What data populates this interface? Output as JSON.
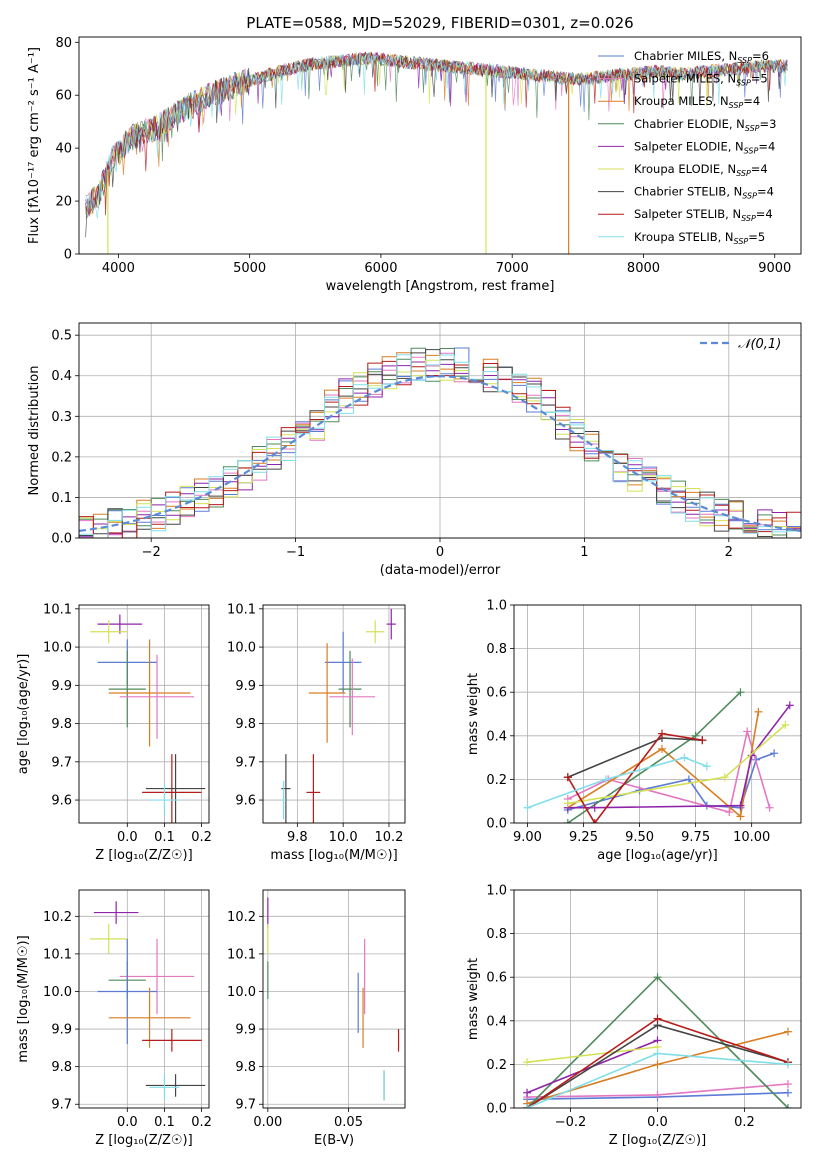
{
  "colors": {
    "Chabrier MILES": "#5b7bd5",
    "Salpeter MILES": "#e377c2",
    "Kroupa MILES": "#d97d22",
    "Chabrier ELODIE": "#4f8a5b",
    "Salpeter ELODIE": "#8e24aa",
    "Kroupa ELODIE": "#d4e157",
    "Chabrier STELIB": "#444444",
    "Salpeter STELIB": "#b71c1c",
    "Kroupa STELIB": "#80deea",
    "normal_curve": "#5b8bd6"
  },
  "chart_data": [
    {
      "id": "spectrum",
      "type": "line",
      "title": "PLATE=0588, MJD=52029, FIBERID=0301, z=0.026",
      "xlabel": "wavelength [Angstrom, rest frame]",
      "ylabel": "Flux [fλ10⁻¹⁷ erg cm⁻² s⁻¹ A⁻¹]",
      "xlim": [
        3700,
        9200
      ],
      "ylim": [
        0,
        82
      ],
      "xticks": [
        4000,
        5000,
        6000,
        7000,
        8000,
        9000
      ],
      "yticks": [
        0,
        20,
        40,
        60,
        80
      ],
      "legend": [
        {
          "name": "Chabrier MILES",
          "label": "Chabrier MILES, N",
          "sub": "SSP",
          "suffix": "=6"
        },
        {
          "name": "Salpeter MILES",
          "label": "Salpeter MILES, N",
          "sub": "SSP",
          "suffix": "=5"
        },
        {
          "name": "Kroupa MILES",
          "label": "Kroupa MILES, N",
          "sub": "SSP",
          "suffix": "=4"
        },
        {
          "name": "Chabrier ELODIE",
          "label": "Chabrier ELODIE, N",
          "sub": "SSP",
          "suffix": "=3"
        },
        {
          "name": "Salpeter ELODIE",
          "label": "Salpeter ELODIE, N",
          "sub": "SSP",
          "suffix": "=4"
        },
        {
          "name": "Kroupa ELODIE",
          "label": "Kroupa ELODIE, N",
          "sub": "SSP",
          "suffix": "=4"
        },
        {
          "name": "Chabrier STELIB",
          "label": "Chabrier STELIB, N",
          "sub": "SSP",
          "suffix": "=4"
        },
        {
          "name": "Salpeter STELIB",
          "label": "Salpeter STELIB, N",
          "sub": "SSP",
          "suffix": "=4"
        },
        {
          "name": "Kroupa STELIB",
          "label": "Kroupa STELIB, N",
          "sub": "SSP",
          "suffix": "=5"
        }
      ],
      "legend_position": "upper-right",
      "continuum_x": [
        3750,
        3850,
        3950,
        4100,
        4300,
        4500,
        4700,
        4900,
        5100,
        5300,
        5500,
        5700,
        5900,
        6100,
        6300,
        6500,
        6700,
        6900,
        7100,
        7300,
        7500,
        7700,
        7900,
        8100,
        8300,
        8500,
        8700,
        8900,
        9000,
        9100
      ],
      "continuum_y": [
        18,
        22,
        36,
        44,
        48,
        55,
        60,
        64,
        67,
        70,
        72,
        73,
        74,
        73,
        72,
        71,
        70,
        69,
        68,
        67,
        66,
        67,
        68,
        69,
        68,
        69,
        70,
        71,
        71,
        71
      ],
      "dropouts": [
        {
          "name": "Kroupa ELODIE",
          "x": 6800
        },
        {
          "name": "Kroupa MILES",
          "x": 7430
        },
        {
          "name": "Kroupa ELODIE",
          "x": 3920
        }
      ]
    },
    {
      "id": "residual-hist",
      "type": "histogram",
      "xlabel": "(data-model)/error",
      "ylabel": "Normed distribution",
      "xlim": [
        -2.5,
        2.5
      ],
      "ylim": [
        0,
        0.53
      ],
      "xticks": [
        -2,
        -1,
        0,
        1,
        2
      ],
      "yticks": [
        0.0,
        0.1,
        0.2,
        0.3,
        0.4,
        0.5
      ],
      "grid": true,
      "legend": [
        {
          "label": "𝒩(0,1)",
          "style": "dashed"
        }
      ],
      "legend_position": "upper-right",
      "bin_width": 0.1,
      "x_start": -2.5
    },
    {
      "id": "age-vs-Z",
      "type": "errorbar",
      "xlabel": "Z [log₁₀(Z/Z☉)]",
      "ylabel": "age  [log₁₀(age/yr)]",
      "xlim": [
        -0.13,
        0.22
      ],
      "ylim": [
        9.54,
        10.11
      ],
      "xticks": [
        0.0,
        0.1,
        0.2
      ],
      "yticks": [
        9.6,
        9.7,
        9.8,
        9.9,
        10.0,
        10.1
      ],
      "grid": true,
      "points": [
        {
          "name": "Salpeter ELODIE",
          "x": -0.02,
          "xerr": 0.06,
          "y": 10.06,
          "yerr": 0.025
        },
        {
          "name": "Kroupa ELODIE",
          "x": -0.05,
          "xerr": 0.05,
          "y": 10.04,
          "yerr": 0.03
        },
        {
          "name": "Chabrier MILES",
          "x": 0.0,
          "xerr": 0.08,
          "y": 9.96,
          "yerr": 0.06
        },
        {
          "name": "Chabrier ELODIE",
          "x": 0.0,
          "xerr": 0.05,
          "y": 9.89,
          "yerr": 0.1
        },
        {
          "name": "Kroupa MILES",
          "x": 0.06,
          "xerr": 0.11,
          "y": 9.88,
          "yerr": 0.14
        },
        {
          "name": "Salpeter MILES",
          "x": 0.08,
          "xerr": 0.1,
          "y": 9.87,
          "yerr": 0.11
        },
        {
          "name": "Salpeter STELIB",
          "x": 0.12,
          "xerr": 0.08,
          "y": 9.62,
          "yerr": 0.1
        },
        {
          "name": "Chabrier STELIB",
          "x": 0.13,
          "xerr": 0.08,
          "y": 9.63,
          "yerr": 0.09
        },
        {
          "name": "Kroupa STELIB",
          "x": 0.1,
          "xerr": 0.04,
          "y": 9.6,
          "yerr": 0.04
        }
      ]
    },
    {
      "id": "age-vs-mass",
      "type": "errorbar",
      "xlabel": "mass [log₁₀(M/M☉)]",
      "ylabel": "",
      "xlim": [
        9.65,
        10.27
      ],
      "ylim": [
        9.54,
        10.11
      ],
      "xticks": [
        9.8,
        10.0,
        10.2
      ],
      "yticks": [
        9.6,
        9.7,
        9.8,
        9.9,
        10.0,
        10.1
      ],
      "grid": true,
      "points": [
        {
          "name": "Salpeter ELODIE",
          "x": 10.21,
          "xerr": 0.02,
          "y": 10.06,
          "yerr": 0.04
        },
        {
          "name": "Kroupa ELODIE",
          "x": 10.14,
          "xerr": 0.04,
          "y": 10.04,
          "yerr": 0.03
        },
        {
          "name": "Chabrier MILES",
          "x": 10.0,
          "xerr": 0.08,
          "y": 9.96,
          "yerr": 0.08
        },
        {
          "name": "Chabrier ELODIE",
          "x": 10.03,
          "xerr": 0.05,
          "y": 9.89,
          "yerr": 0.1
        },
        {
          "name": "Kroupa MILES",
          "x": 9.93,
          "xerr": 0.08,
          "y": 9.88,
          "yerr": 0.13
        },
        {
          "name": "Salpeter MILES",
          "x": 10.04,
          "xerr": 0.1,
          "y": 9.87,
          "yerr": 0.1
        },
        {
          "name": "Salpeter STELIB",
          "x": 9.87,
          "xerr": 0.03,
          "y": 9.62,
          "yerr": 0.1
        },
        {
          "name": "Chabrier STELIB",
          "x": 9.75,
          "xerr": 0.02,
          "y": 9.63,
          "yerr": 0.09
        },
        {
          "name": "Kroupa STELIB",
          "x": 9.74,
          "xerr": 0.01,
          "y": 9.6,
          "yerr": 0.05
        }
      ]
    },
    {
      "id": "weight-vs-age",
      "type": "line",
      "xlabel": "age  [log₁₀(age/yr)]",
      "ylabel": "mass weight",
      "xlim": [
        8.94,
        10.22
      ],
      "ylim": [
        0,
        1.0
      ],
      "xticks": [
        9.0,
        9.25,
        9.5,
        9.75,
        10.0
      ],
      "yticks": [
        0.0,
        0.2,
        0.4,
        0.6,
        0.8,
        1.0
      ],
      "grid": true,
      "series": [
        {
          "name": "Chabrier MILES",
          "x": [
            9.18,
            9.5,
            9.72,
            9.8,
            9.95,
            10.02,
            10.1
          ],
          "y": [
            0.06,
            0.15,
            0.2,
            0.08,
            0.07,
            0.29,
            0.32
          ]
        },
        {
          "name": "Salpeter MILES",
          "x": [
            9.18,
            9.36,
            9.9,
            9.98,
            10.08
          ],
          "y": [
            0.11,
            0.2,
            0.05,
            0.42,
            0.07
          ]
        },
        {
          "name": "Kroupa MILES",
          "x": [
            9.18,
            9.6,
            9.95,
            10.03
          ],
          "y": [
            0.07,
            0.34,
            0.03,
            0.51
          ]
        },
        {
          "name": "Chabrier ELODIE",
          "x": [
            9.18,
            9.75,
            9.95
          ],
          "y": [
            0.0,
            0.4,
            0.6
          ]
        },
        {
          "name": "Salpeter ELODIE",
          "x": [
            9.18,
            9.3,
            9.95,
            10.0,
            10.17
          ],
          "y": [
            0.07,
            0.07,
            0.08,
            0.31,
            0.54
          ]
        },
        {
          "name": "Kroupa ELODIE",
          "x": [
            9.18,
            9.88,
            10.15
          ],
          "y": [
            0.09,
            0.21,
            0.45
          ]
        },
        {
          "name": "Chabrier STELIB",
          "x": [
            9.18,
            9.6,
            9.78
          ],
          "y": [
            0.21,
            0.39,
            0.38
          ]
        },
        {
          "name": "Salpeter STELIB",
          "x": [
            9.18,
            9.3,
            9.6,
            9.78
          ],
          "y": [
            0.21,
            0.0,
            0.41,
            0.38
          ]
        },
        {
          "name": "Kroupa STELIB",
          "x": [
            9.0,
            9.35,
            9.7,
            9.8
          ],
          "y": [
            0.07,
            0.2,
            0.3,
            0.26
          ]
        }
      ]
    },
    {
      "id": "mass-vs-Z",
      "type": "errorbar",
      "xlabel": "Z [log₁₀(Z/Z☉)]",
      "ylabel": "mass [log₁₀(M/M☉)]",
      "xlim": [
        -0.13,
        0.22
      ],
      "ylim": [
        9.69,
        10.27
      ],
      "xticks": [
        0.0,
        0.1,
        0.2
      ],
      "yticks": [
        9.7,
        9.8,
        9.9,
        10.0,
        10.1,
        10.2
      ],
      "grid": true,
      "points": [
        {
          "name": "Salpeter ELODIE",
          "x": -0.03,
          "xerr": 0.06,
          "y": 10.21,
          "yerr": 0.03
        },
        {
          "name": "Kroupa ELODIE",
          "x": -0.05,
          "xerr": 0.05,
          "y": 10.14,
          "yerr": 0.04
        },
        {
          "name": "Salpeter MILES",
          "x": 0.08,
          "xerr": 0.1,
          "y": 10.04,
          "yerr": 0.1
        },
        {
          "name": "Chabrier ELODIE",
          "x": 0.0,
          "xerr": 0.05,
          "y": 10.03,
          "yerr": 0.05
        },
        {
          "name": "Chabrier MILES",
          "x": 0.0,
          "xerr": 0.08,
          "y": 10.0,
          "yerr": 0.14
        },
        {
          "name": "Kroupa MILES",
          "x": 0.06,
          "xerr": 0.11,
          "y": 9.93,
          "yerr": 0.08
        },
        {
          "name": "Salpeter STELIB",
          "x": 0.12,
          "xerr": 0.08,
          "y": 9.87,
          "yerr": 0.03
        },
        {
          "name": "Chabrier STELIB",
          "x": 0.13,
          "xerr": 0.08,
          "y": 9.75,
          "yerr": 0.03
        },
        {
          "name": "Kroupa STELIB",
          "x": 0.1,
          "xerr": 0.04,
          "y": 9.745,
          "yerr": 0.035
        }
      ]
    },
    {
      "id": "mass-vs-EBV",
      "type": "errorbar",
      "xlabel": "E(B-V)",
      "ylabel": "",
      "xlim": [
        -0.003,
        0.085
      ],
      "ylim": [
        9.69,
        10.27
      ],
      "xticks": [
        0.0,
        0.05
      ],
      "yticks": [
        9.7,
        9.8,
        9.9,
        10.0,
        10.1,
        10.2
      ],
      "grid": true,
      "points": [
        {
          "name": "Salpeter ELODIE",
          "x": 0.0,
          "xerr": 0,
          "y": 10.21,
          "yerr": 0.04
        },
        {
          "name": "Kroupa ELODIE",
          "x": 0.0,
          "xerr": 0,
          "y": 10.14,
          "yerr": 0.04
        },
        {
          "name": "Chabrier ELODIE",
          "x": 0.0,
          "xerr": 0,
          "y": 10.03,
          "yerr": 0.05
        },
        {
          "name": "Salpeter MILES",
          "x": 0.06,
          "xerr": 0,
          "y": 10.04,
          "yerr": 0.1
        },
        {
          "name": "Chabrier MILES",
          "x": 0.056,
          "xerr": 0,
          "y": 9.97,
          "yerr": 0.08
        },
        {
          "name": "Kroupa MILES",
          "x": 0.059,
          "xerr": 0,
          "y": 9.93,
          "yerr": 0.08
        },
        {
          "name": "Salpeter STELIB",
          "x": 0.081,
          "xerr": 0,
          "y": 9.87,
          "yerr": 0.03
        },
        {
          "name": "Chabrier STELIB",
          "x": 0.072,
          "xerr": 0,
          "y": 9.75,
          "yerr": 0.04
        },
        {
          "name": "Kroupa STELIB",
          "x": 0.072,
          "xerr": 0,
          "y": 9.75,
          "yerr": 0.04
        }
      ]
    },
    {
      "id": "weight-vs-Z",
      "type": "line",
      "xlabel": "Z [log₁₀(Z/Z☉)]",
      "ylabel": "mass weight",
      "xlim": [
        -0.33,
        0.33
      ],
      "ylim": [
        0,
        1.0
      ],
      "xticks": [
        -0.2,
        0.0,
        0.2
      ],
      "yticks": [
        0.0,
        0.2,
        0.4,
        0.6,
        0.8,
        1.0
      ],
      "grid": true,
      "series": [
        {
          "name": "Chabrier MILES",
          "x": [
            -0.3,
            0.0,
            0.3
          ],
          "y": [
            0.04,
            0.05,
            0.07
          ]
        },
        {
          "name": "Salpeter MILES",
          "x": [
            -0.3,
            0.0,
            0.3
          ],
          "y": [
            0.05,
            0.06,
            0.11
          ]
        },
        {
          "name": "Kroupa MILES",
          "x": [
            -0.3,
            0.0,
            0.3
          ],
          "y": [
            0.02,
            0.2,
            0.35
          ]
        },
        {
          "name": "Chabrier ELODIE",
          "x": [
            -0.3,
            0.0,
            0.3
          ],
          "y": [
            0.0,
            0.6,
            0.0
          ]
        },
        {
          "name": "Salpeter ELODIE",
          "x": [
            -0.3,
            0.0
          ],
          "y": [
            0.07,
            0.31
          ]
        },
        {
          "name": "Kroupa ELODIE",
          "x": [
            -0.3,
            0.0
          ],
          "y": [
            0.21,
            0.28
          ]
        },
        {
          "name": "Chabrier STELIB",
          "x": [
            -0.3,
            0.0,
            0.3
          ],
          "y": [
            0.0,
            0.38,
            0.21
          ]
        },
        {
          "name": "Salpeter STELIB",
          "x": [
            -0.3,
            0.0,
            0.3
          ],
          "y": [
            0.0,
            0.41,
            0.21
          ]
        },
        {
          "name": "Kroupa STELIB",
          "x": [
            -0.3,
            0.0,
            0.3
          ],
          "y": [
            0.0,
            0.25,
            0.2
          ]
        }
      ]
    }
  ]
}
